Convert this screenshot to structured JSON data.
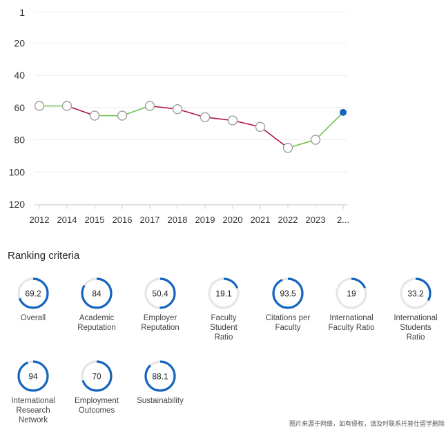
{
  "chart_data": {
    "type": "line",
    "categories": [
      "2012",
      "2014",
      "2015",
      "2016",
      "2017",
      "2018",
      "2019",
      "2020",
      "2021",
      "2022",
      "2023",
      "2..."
    ],
    "values": [
      59,
      59,
      65,
      65,
      59,
      61,
      66,
      68,
      72,
      85,
      80,
      63
    ],
    "y_ticks": [
      "1",
      "20",
      "40",
      "60",
      "80",
      "100",
      "120"
    ],
    "y_tick_values": [
      1,
      20,
      40,
      60,
      80,
      100,
      120
    ],
    "ylim": [
      1,
      120
    ],
    "y_inverted": true,
    "improving_color": "#6cc24a",
    "declining_color": "#b0153c",
    "current_point_color": "#1565c0",
    "title": "",
    "xlabel": "",
    "ylabel": ""
  },
  "ranking": {
    "title": "Ranking criteria",
    "ring_color": "#1565c0",
    "track_color": "#e6e6e6",
    "items": [
      {
        "value": "69.2",
        "score": 69.2,
        "lines": [
          "Overall"
        ]
      },
      {
        "value": "84",
        "score": 84,
        "lines": [
          "Academic",
          "Reputation"
        ]
      },
      {
        "value": "50.4",
        "score": 50.4,
        "lines": [
          "Employer",
          "Reputation"
        ]
      },
      {
        "value": "19.1",
        "score": 19.1,
        "lines": [
          "Faculty",
          "Student",
          "Ratio"
        ]
      },
      {
        "value": "93.5",
        "score": 93.5,
        "lines": [
          "Citations per",
          "Faculty"
        ]
      },
      {
        "value": "19",
        "score": 19,
        "lines": [
          "International",
          "Faculty Ratio"
        ]
      },
      {
        "value": "33.2",
        "score": 33.2,
        "lines": [
          "International",
          "Students",
          "Ratio"
        ]
      },
      {
        "value": "94",
        "score": 94,
        "lines": [
          "International",
          "Research",
          "Network"
        ]
      },
      {
        "value": "70",
        "score": 70,
        "lines": [
          "Employment",
          "Outcomes"
        ]
      },
      {
        "value": "88.1",
        "score": 88.1,
        "lines": [
          "Sustainability"
        ]
      }
    ]
  },
  "watermark": "图片来源于网络，如有侵权，请及时联系托普仕留学删除"
}
